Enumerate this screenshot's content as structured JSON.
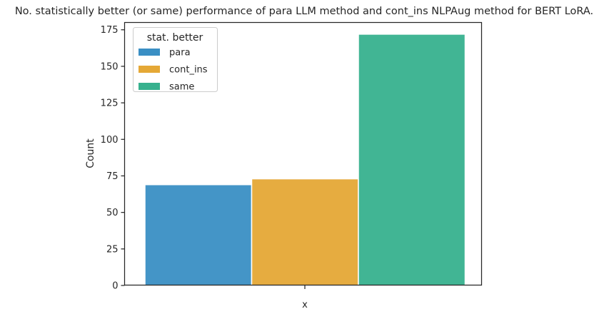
{
  "chart_data": {
    "type": "bar",
    "title": "No. statistically better (or same) performance of para LLM method and cont_ins NLPAug method for BERT LoRA.",
    "xlabel": "x",
    "ylabel": "Count",
    "ylim": [
      0,
      180
    ],
    "yticks": [
      0,
      25,
      50,
      75,
      100,
      125,
      150,
      175
    ],
    "categories": [
      "para",
      "cont_ins",
      "same"
    ],
    "values": [
      69,
      73,
      172
    ],
    "grid": false,
    "legend": {
      "title": "stat. better",
      "position": "top-left",
      "entries": [
        {
          "label": "para",
          "color": "#3a8fc4"
        },
        {
          "label": "cont_ins",
          "color": "#e5a836"
        },
        {
          "label": "same",
          "color": "#37b18e"
        }
      ]
    },
    "colors": [
      "#3a8fc4",
      "#e5a836",
      "#37b18e"
    ]
  }
}
